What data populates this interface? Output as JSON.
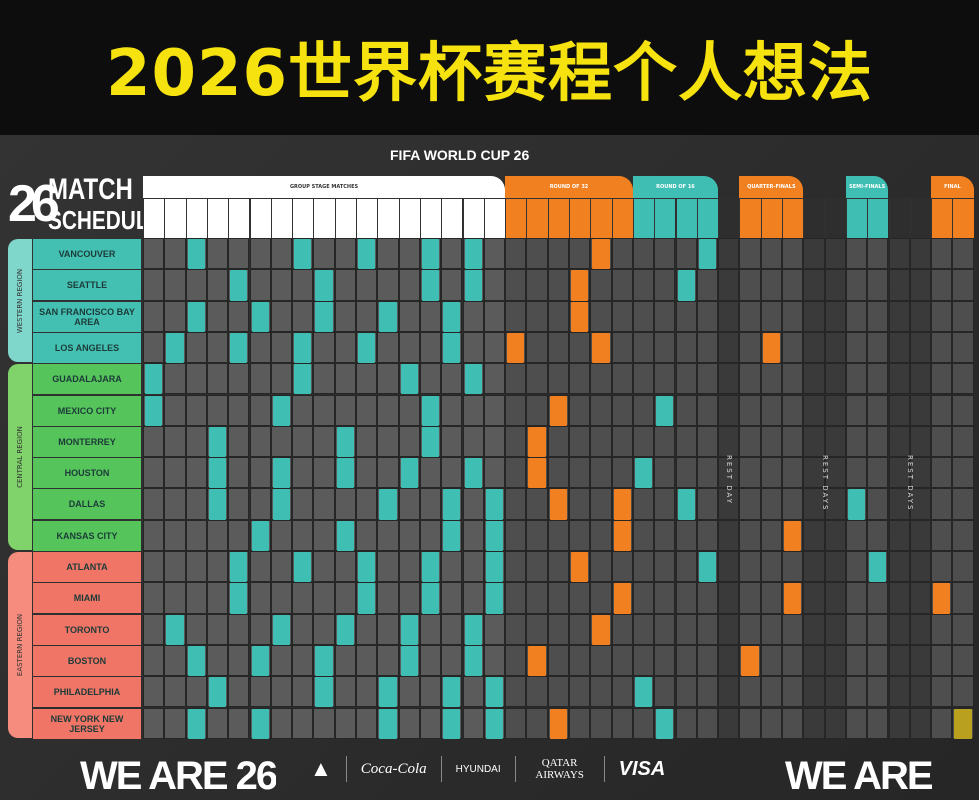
{
  "banner": {
    "title": "2026世界杯赛程个人想法"
  },
  "poster": {
    "event": "FIFA WORLD CUP 26",
    "logo_number": "26",
    "logo_line1": "MATCH",
    "logo_line2": "SCHEDULE"
  },
  "stages": [
    {
      "label": "GROUP STAGE MATCHES",
      "start": 0,
      "span": 17,
      "color": "#ffffff"
    },
    {
      "label": "ROUND OF 32",
      "start": 17,
      "span": 6,
      "color": "#f08020"
    },
    {
      "label": "ROUND OF 16",
      "start": 23,
      "span": 4,
      "color": "#3fbfb3"
    },
    {
      "label": "QUARTER-FINALS",
      "start": 28,
      "span": 3,
      "color": "#f08020"
    },
    {
      "label": "SEMI-FINALS",
      "start": 33,
      "span": 2,
      "color": "#3fbfb3"
    },
    {
      "label": "FINAL",
      "start": 37,
      "span": 2,
      "color": "#f08020"
    }
  ],
  "rest_days": [
    {
      "label": "REST DAY",
      "start": 27,
      "span": 1
    },
    {
      "label": "REST DAYS",
      "start": 31,
      "span": 2
    },
    {
      "label": "REST DAYS",
      "start": 35,
      "span": 2
    }
  ],
  "colors": {
    "group": "#3fbfb3",
    "knockout": "#f08020",
    "final": "#b9a01e",
    "cell": "#5b5b5b",
    "cell_ko": "#4e4e4e",
    "rest": "#3a3a3a"
  },
  "regions": [
    {
      "label": "WESTERN REGION",
      "color": "#7fd6cb",
      "city_color": "#44c0b3",
      "rows": [
        0,
        4
      ]
    },
    {
      "label": "CENTRAL REGION",
      "color": "#7fd36a",
      "city_color": "#55c45b",
      "rows": [
        4,
        10
      ]
    },
    {
      "label": "EASTERN REGION",
      "color": "#f58c7e",
      "city_color": "#f07566",
      "rows": [
        10,
        16
      ]
    }
  ],
  "cities": [
    {
      "name": "VANCOUVER",
      "matches": [
        [
          2,
          "t"
        ],
        [
          7,
          "t"
        ],
        [
          10,
          "t"
        ],
        [
          13,
          "t"
        ],
        [
          15,
          "t"
        ],
        [
          21,
          "o"
        ],
        [
          26,
          "t"
        ]
      ]
    },
    {
      "name": "SEATTLE",
      "matches": [
        [
          4,
          "t"
        ],
        [
          8,
          "t"
        ],
        [
          13,
          "t"
        ],
        [
          15,
          "t"
        ],
        [
          20,
          "o"
        ],
        [
          25,
          "t"
        ]
      ]
    },
    {
      "name": "SAN FRANCISCO BAY AREA",
      "matches": [
        [
          2,
          "t"
        ],
        [
          5,
          "t"
        ],
        [
          8,
          "t"
        ],
        [
          11,
          "t"
        ],
        [
          14,
          "t"
        ],
        [
          20,
          "o"
        ]
      ]
    },
    {
      "name": "LOS ANGELES",
      "matches": [
        [
          1,
          "t"
        ],
        [
          4,
          "t"
        ],
        [
          7,
          "t"
        ],
        [
          10,
          "t"
        ],
        [
          14,
          "t"
        ],
        [
          17,
          "o"
        ],
        [
          21,
          "o"
        ],
        [
          29,
          "o"
        ]
      ]
    },
    {
      "name": "GUADALAJARA",
      "matches": [
        [
          0,
          "t"
        ],
        [
          7,
          "t"
        ],
        [
          12,
          "t"
        ],
        [
          15,
          "t"
        ]
      ]
    },
    {
      "name": "MEXICO CITY",
      "matches": [
        [
          0,
          "t"
        ],
        [
          6,
          "t"
        ],
        [
          13,
          "t"
        ],
        [
          19,
          "o"
        ],
        [
          24,
          "t"
        ]
      ]
    },
    {
      "name": "MONTERREY",
      "matches": [
        [
          3,
          "t"
        ],
        [
          9,
          "t"
        ],
        [
          13,
          "t"
        ],
        [
          18,
          "o"
        ]
      ]
    },
    {
      "name": "HOUSTON",
      "matches": [
        [
          3,
          "t"
        ],
        [
          6,
          "t"
        ],
        [
          9,
          "t"
        ],
        [
          12,
          "t"
        ],
        [
          15,
          "t"
        ],
        [
          18,
          "o"
        ],
        [
          23,
          "t"
        ]
      ]
    },
    {
      "name": "DALLAS",
      "matches": [
        [
          3,
          "t"
        ],
        [
          6,
          "t"
        ],
        [
          11,
          "t"
        ],
        [
          14,
          "t"
        ],
        [
          16,
          "t"
        ],
        [
          19,
          "o"
        ],
        [
          22,
          "o"
        ],
        [
          25,
          "t"
        ],
        [
          33,
          "t"
        ]
      ]
    },
    {
      "name": "KANSAS CITY",
      "matches": [
        [
          5,
          "t"
        ],
        [
          9,
          "t"
        ],
        [
          14,
          "t"
        ],
        [
          16,
          "t"
        ],
        [
          22,
          "o"
        ],
        [
          30,
          "o"
        ]
      ]
    },
    {
      "name": "ATLANTA",
      "matches": [
        [
          4,
          "t"
        ],
        [
          7,
          "t"
        ],
        [
          10,
          "t"
        ],
        [
          13,
          "t"
        ],
        [
          16,
          "t"
        ],
        [
          20,
          "o"
        ],
        [
          26,
          "t"
        ],
        [
          34,
          "t"
        ]
      ]
    },
    {
      "name": "MIAMI",
      "matches": [
        [
          4,
          "t"
        ],
        [
          10,
          "t"
        ],
        [
          13,
          "t"
        ],
        [
          16,
          "t"
        ],
        [
          22,
          "o"
        ],
        [
          30,
          "o"
        ],
        [
          37,
          "o"
        ]
      ]
    },
    {
      "name": "TORONTO",
      "matches": [
        [
          1,
          "t"
        ],
        [
          6,
          "t"
        ],
        [
          9,
          "t"
        ],
        [
          12,
          "t"
        ],
        [
          15,
          "t"
        ],
        [
          21,
          "o"
        ]
      ]
    },
    {
      "name": "BOSTON",
      "matches": [
        [
          2,
          "t"
        ],
        [
          5,
          "t"
        ],
        [
          8,
          "t"
        ],
        [
          12,
          "t"
        ],
        [
          15,
          "t"
        ],
        [
          18,
          "o"
        ],
        [
          28,
          "o"
        ]
      ]
    },
    {
      "name": "PHILADELPHIA",
      "matches": [
        [
          3,
          "t"
        ],
        [
          8,
          "t"
        ],
        [
          11,
          "t"
        ],
        [
          14,
          "t"
        ],
        [
          16,
          "t"
        ],
        [
          23,
          "t"
        ]
      ]
    },
    {
      "name": "NEW YORK NEW JERSEY",
      "matches": [
        [
          2,
          "t"
        ],
        [
          5,
          "t"
        ],
        [
          11,
          "t"
        ],
        [
          14,
          "t"
        ],
        [
          16,
          "t"
        ],
        [
          19,
          "o"
        ],
        [
          24,
          "t"
        ],
        [
          38,
          "g"
        ]
      ]
    }
  ],
  "sponsors": [
    "adidas",
    "Coca-Cola",
    "HYUNDAI",
    "QATAR AIRWAYS",
    "VISA"
  ],
  "footer_logo": "WE ARE 26"
}
